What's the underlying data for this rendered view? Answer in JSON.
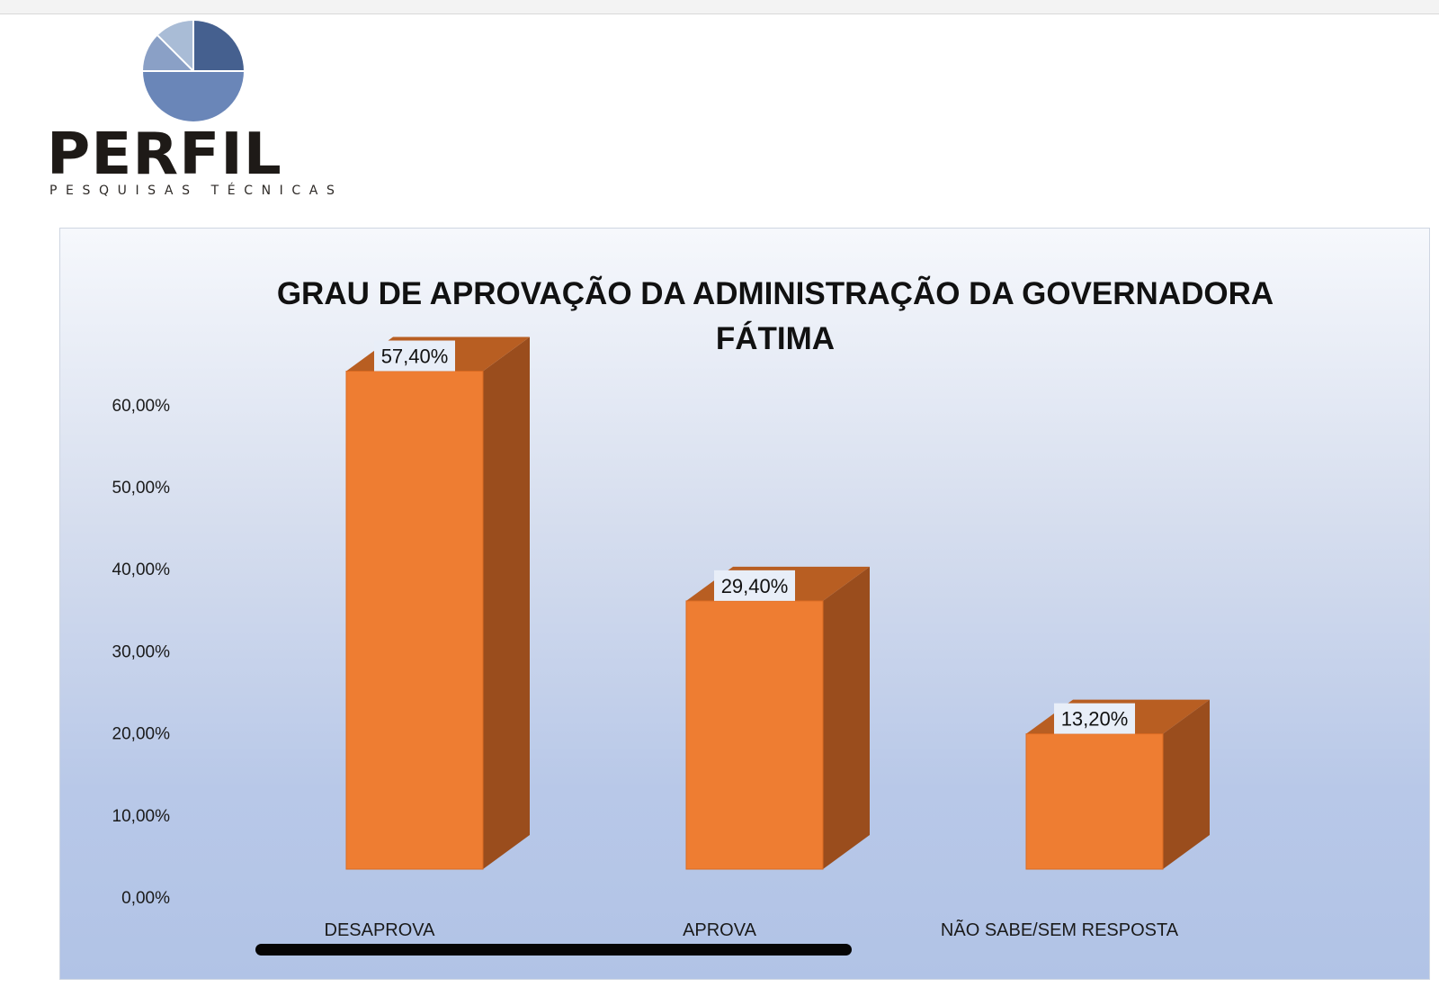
{
  "logo": {
    "wordmark": "PERFIL",
    "tagline": "PESQUISAS TÉCNICAS",
    "colors": {
      "dark_blue": "#45608f",
      "mid_blue": "#6a86b8",
      "light_blue": "#a9bcd6",
      "text": "#1e1a17"
    }
  },
  "colors": {
    "bar_front": "#ee7d32",
    "bar_side": "#9a4d1d",
    "bar_top": "#b85e22",
    "label_box": "#e8eef8"
  },
  "chart_data": {
    "type": "bar",
    "style": "3d",
    "title": "GRAU DE APROVAÇÃO DA ADMINISTRAÇÃO DA GOVERNADORA FÁTIMA",
    "categories": [
      "DESAPROVA",
      "APROVA",
      "NÃO SABE/SEM RESPOSTA"
    ],
    "values": [
      57.4,
      29.4,
      13.2
    ],
    "data_labels": [
      "57,40%",
      "29,40%",
      "13,20%"
    ],
    "y_ticks": [
      0,
      10,
      20,
      30,
      40,
      50,
      60
    ],
    "y_tick_labels": [
      "0,00%",
      "10,00%",
      "20,00%",
      "30,00%",
      "40,00%",
      "50,00%",
      "60,00%"
    ],
    "ylim": [
      0,
      60
    ],
    "grid": false,
    "legend": "none"
  }
}
